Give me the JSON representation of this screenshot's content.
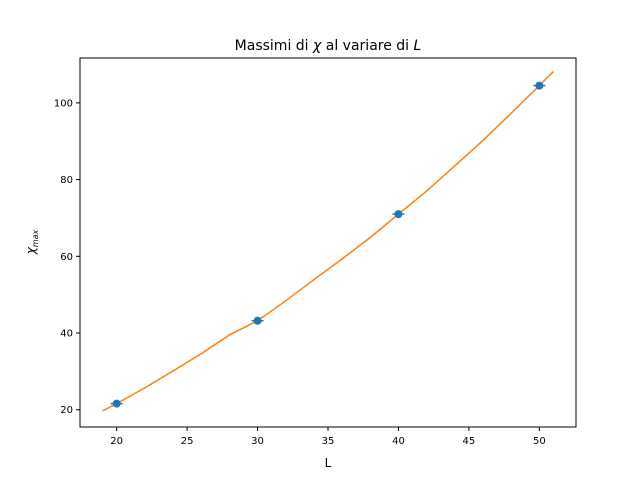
{
  "chart_data": {
    "type": "scatter",
    "title": {
      "prefix": "Massimi di ",
      "chi": "χ",
      "middle": " al variare di ",
      "L": "L"
    },
    "xlabel": "L",
    "ylabel": {
      "base": "χ",
      "sub": "max"
    },
    "xlim": [
      17.4,
      52.6
    ],
    "ylim": [
      15.5,
      111.7
    ],
    "xticks": [
      20,
      25,
      30,
      35,
      40,
      45,
      50
    ],
    "yticks": [
      20,
      40,
      60,
      80,
      100
    ],
    "grid": false,
    "series": [
      {
        "type": "scatter",
        "color": "#1f77b4",
        "marker": "circle",
        "x": [
          20,
          30,
          40,
          50
        ],
        "y": [
          21.6,
          43.2,
          71.0,
          104.5
        ]
      },
      {
        "type": "line",
        "color": "#ff7f0e",
        "x": [
          19,
          20,
          22,
          24,
          26,
          28,
          30,
          32,
          34,
          36,
          38,
          40,
          42,
          44,
          46,
          48,
          50,
          51
        ],
        "y": [
          19.7,
          21.6,
          25.7,
          30.1,
          34.6,
          39.5,
          43.2,
          48.4,
          53.9,
          59.3,
          64.9,
          71.0,
          77.0,
          83.6,
          90.2,
          97.3,
          104.5,
          108.2
        ]
      }
    ]
  }
}
